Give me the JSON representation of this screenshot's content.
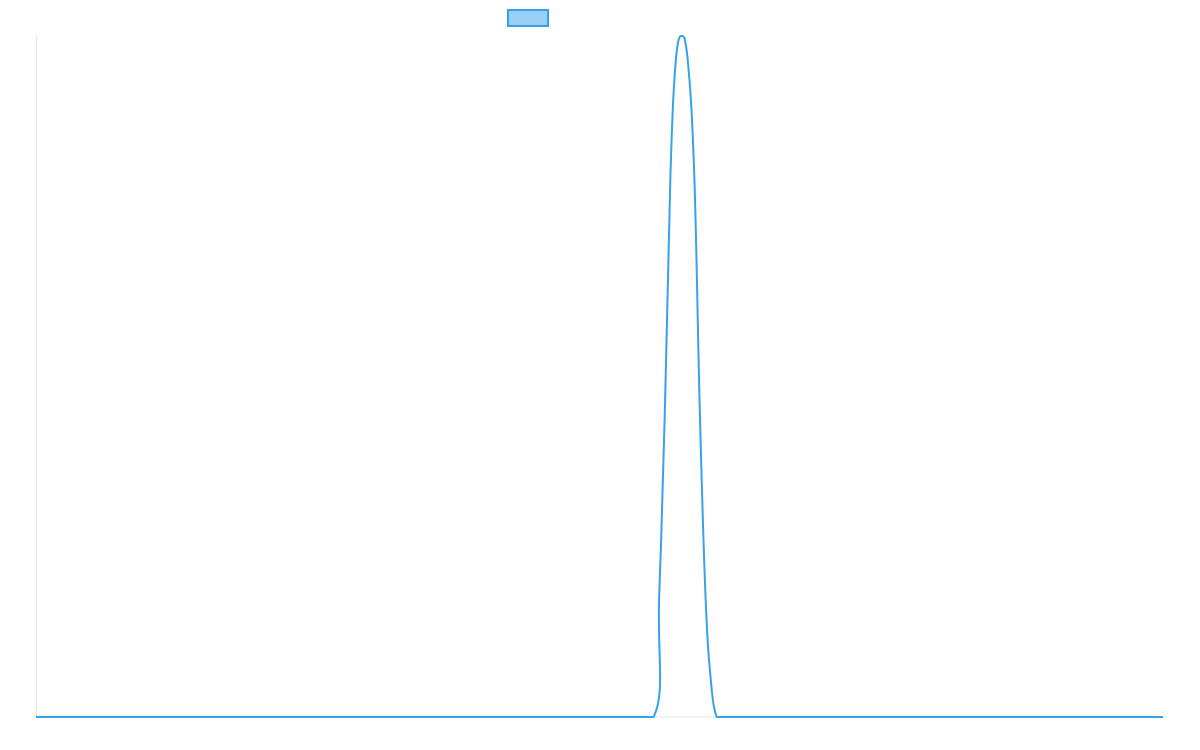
{
  "chart_data": {
    "type": "line",
    "title": "",
    "xlabel": "",
    "ylabel": "",
    "xlim": [
      0,
      1000
    ],
    "ylim": [
      0,
      1
    ],
    "grid": false,
    "legend": {
      "placement": "top-center",
      "entries": [
        {
          "label": ""
        }
      ]
    },
    "series": [
      {
        "color": "#36a2eb",
        "fill_color": "#9ad0f5",
        "x": [
          0,
          100,
          200,
          300,
          400,
          500,
          548,
          553,
          558,
          563,
          568,
          573,
          578,
          584,
          589,
          594,
          599,
          604,
          609,
          614,
          620,
          700,
          800,
          900,
          1000
        ],
        "y": [
          0,
          0,
          0,
          0,
          0,
          0,
          0,
          0.18,
          0.45,
          0.8,
          0.97,
          1.0,
          0.97,
          0.8,
          0.45,
          0.18,
          0.05,
          0,
          0,
          0,
          0,
          0,
          0,
          0,
          0
        ]
      }
    ]
  }
}
